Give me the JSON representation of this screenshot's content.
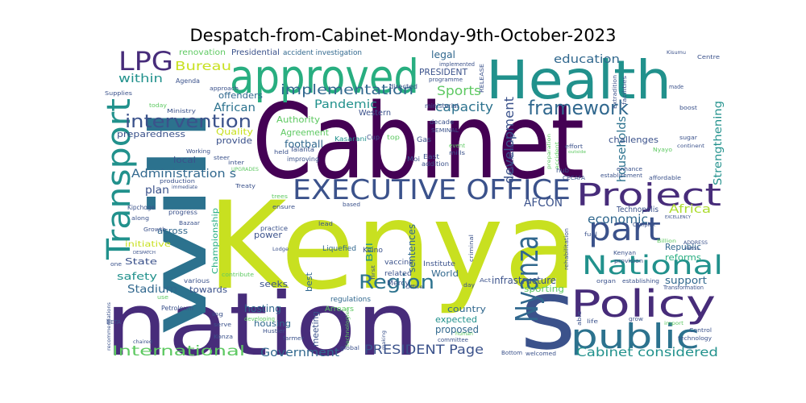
{
  "title": "Despatch-from-Cabinet-Monday-9th-October-2023",
  "colors": {
    "dark_purple": "#440154",
    "purple": "#472c7a",
    "indigo": "#3b528b",
    "blue": "#31688e",
    "steel": "#2c728e",
    "teal": "#21918c",
    "sea_green": "#28ae80",
    "green": "#5ec962",
    "lime": "#addc30",
    "yellow_green": "#c8e020",
    "yellow": "#fde725"
  },
  "words": {
    "cabinet": "Cabinet",
    "kenya": "Kenya",
    "nation": "nation",
    "health": "Health",
    "will": "will",
    "s": "s",
    "approved": "approved",
    "policy": "Policy",
    "executive_office": "EXECUTIVE OFFICE",
    "project": "Project",
    "public": "public",
    "national": "National",
    "transport": "Transport",
    "part": "part",
    "nyanza": "Nyanza",
    "lpg": "LPG",
    "framework": "framework",
    "region": "Region",
    "intervention": "intervention",
    "implementation": "implementation",
    "international": "International",
    "government": "Government",
    "president_page": "PRESIDENT Page",
    "cabinet_considered": "Cabinet considered",
    "bureau": "Bureau",
    "within": "within",
    "education": "education",
    "capacity": "capacity",
    "pandemic": "Pandemic",
    "sports": "Sports",
    "development": "development",
    "households": "households",
    "economic": "economic",
    "africa": "Africa",
    "afcon": "AFCON",
    "strengthening": "Strengthening",
    "administration_s": "Administration s",
    "plan": "plan",
    "african": "African",
    "preparedness": "preparedness",
    "quality": "Quality",
    "provide": "provide",
    "football": "football",
    "agreement": "Agreement",
    "authority": "Authority",
    "offenders": "offenders",
    "renovation": "renovation",
    "presidential": "Presidential",
    "accident_investigation": "accident investigation",
    "legal": "legal",
    "president": "PRESIDENT",
    "stadium": "Stadium",
    "safety": "safety",
    "state": "State",
    "initiative": "initiative",
    "towards": "towards",
    "seeks": "seeks",
    "hosting": "hosting",
    "housing": "housing",
    "proposed": "proposed",
    "expected": "expected",
    "country": "country",
    "world": "World",
    "sentences": "sentences",
    "infrastructure": "infrastructure",
    "sporting": "sporting",
    "support": "support",
    "reforms": "reforms",
    "republic": "Republic",
    "challenges": "challenges",
    "championship": "Championship",
    "power": "power",
    "across": "across",
    "local": "local",
    "meeting": "meeting",
    "bill": "Bill",
    "best": "best",
    "regulations": "regulations",
    "arrears": "Arrears",
    "keino": "Keino",
    "vaccine": "vaccine",
    "related": "related",
    "mercy": "Mercy",
    "institute": "Institute",
    "liquefied": "Liquefied",
    "kasarani": "Kasarani",
    "western": "Western",
    "cup": "Cup",
    "gas": "Gas",
    "top": "top",
    "moi": "Moi",
    "east": "East",
    "addition": "addition",
    "seminal": "SEMINAL",
    "event": "event",
    "mills": "mills",
    "decade": "decade",
    "ministerial": "ministerial",
    "directed": "directed",
    "programme": "programme",
    "implemented": "implemented",
    "release": "RELEASE",
    "agenda": "Agenda",
    "approach": "approach",
    "supplies": "Supplies",
    "ministry": "Ministry",
    "today": "today",
    "working": "Working",
    "steer": "steer",
    "talanta": "Talanta",
    "held": "held",
    "improving": "improving",
    "inter": "inter",
    "upgrades": "UPGRADES",
    "production": "production",
    "immediate": "immediate",
    "treaty": "Treaty",
    "kipchoge": "Kipchoge",
    "progress": "progress",
    "along": "along",
    "growth": "Growth",
    "bazaar": "Bazaar",
    "despatch": "DESPATCH",
    "trees": "trees",
    "ensure": "ensure",
    "practice": "practice",
    "lead": "lead",
    "lodge": "Lodge",
    "based": "based",
    "contribute": "contribute",
    "various": "various",
    "one": "one",
    "use": "use",
    "beta": "BETA",
    "petroleum": "Petroleum",
    "ing": "ing",
    "konza": "Konza",
    "serve": "serve",
    "developing": "developing",
    "hustler": "Hustler",
    "farmer": "farmer",
    "recommendations": "recommendations",
    "chaired": "chaired",
    "global": "global",
    "technologies": "technologies",
    "making": "making",
    "committee": "committee",
    "human": "human",
    "bottom": "Bottom",
    "welcomed": "welcomed",
    "office": "Office",
    "first": "first",
    "day": "day",
    "act": "Act",
    "criminal": "criminal",
    "rehabilitation": "rehabilitation",
    "technopolis": "Technopolis",
    "hub": "hub",
    "cecafa": "CECAFA",
    "establishment": "establishment",
    "affordable": "affordable",
    "enhance": "enhance",
    "boost": "boost",
    "sugar": "sugar",
    "continent": "continent",
    "effort": "effort",
    "outside": "outside",
    "nyayo": "Nyayo",
    "accident": "accident",
    "preparation": "preparation",
    "manufacturing": "manufacturing",
    "extradition": "Extradition",
    "facilities": "facilities",
    "kisumu": "Kisumu",
    "centre": "Centre",
    "made": "made",
    "excellency": "EXCELLENCY",
    "address": "ADDRESS",
    "press": "PRESS",
    "billion": "Billion",
    "complex": "Complex",
    "fuel": "fuel",
    "provision": "provision",
    "kenyan": "Kenyan",
    "organ": "organ",
    "establishing": "establishing",
    "transformation": "Transformation",
    "grow": "grow",
    "life": "life",
    "able": "able",
    "import": "import",
    "control": "Control",
    "technology": "technology"
  }
}
